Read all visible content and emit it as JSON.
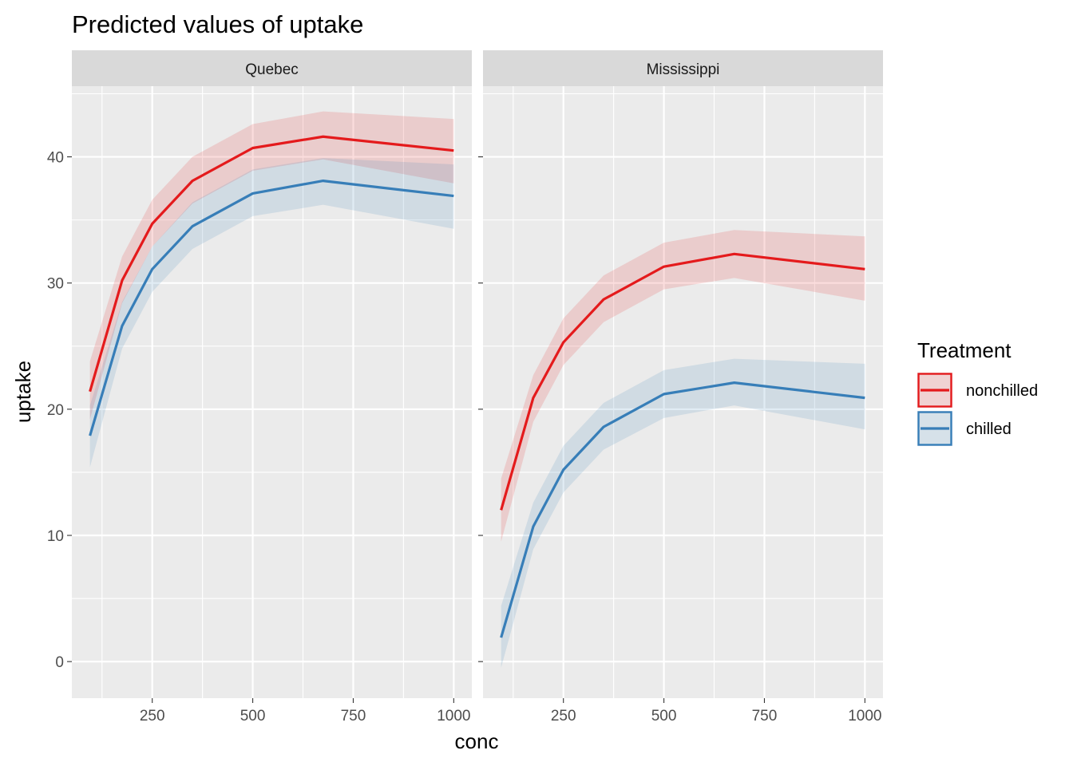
{
  "chart_data": {
    "type": "line",
    "title": "Predicted values of uptake",
    "xlabel": "conc",
    "ylabel": "uptake",
    "xlim": [
      50,
      1045
    ],
    "ylim": [
      -2.9,
      45.6
    ],
    "x_ticks": [
      250,
      500,
      750,
      1000
    ],
    "y_ticks": [
      0,
      10,
      20,
      30,
      40
    ],
    "grid": true,
    "bands": "confidence intervals",
    "legend": {
      "title": "Treatment",
      "position": "right",
      "entries": [
        "nonchilled",
        "chilled"
      ]
    },
    "colors": {
      "nonchilled": "#E41A1C",
      "chilled": "#377EB8"
    },
    "x": [
      95,
      175,
      250,
      350,
      500,
      675,
      1000
    ],
    "panels": [
      {
        "name": "Quebec",
        "series": [
          {
            "name": "nonchilled",
            "values": [
              21.4,
              30.2,
              34.7,
              38.1,
              40.7,
              41.6,
              40.5
            ],
            "lower": [
              19.2,
              28.4,
              32.9,
              36.3,
              38.9,
              39.8,
              37.9
            ],
            "upper": [
              23.8,
              32.1,
              36.6,
              40.0,
              42.6,
              43.6,
              43.0
            ]
          },
          {
            "name": "chilled",
            "values": [
              17.9,
              26.6,
              31.1,
              34.5,
              37.1,
              38.1,
              36.9
            ],
            "lower": [
              15.4,
              24.8,
              29.3,
              32.7,
              35.3,
              36.2,
              34.3
            ],
            "upper": [
              20.3,
              28.5,
              32.9,
              36.4,
              39.0,
              39.9,
              39.4
            ]
          }
        ]
      },
      {
        "name": "Mississippi",
        "series": [
          {
            "name": "nonchilled",
            "values": [
              12.0,
              20.9,
              25.3,
              28.7,
              31.3,
              32.3,
              31.1
            ],
            "lower": [
              9.5,
              19.0,
              23.5,
              26.9,
              29.5,
              30.4,
              28.6
            ],
            "upper": [
              14.5,
              22.7,
              27.2,
              30.6,
              33.2,
              34.2,
              33.7
            ]
          },
          {
            "name": "chilled",
            "values": [
              1.9,
              10.7,
              15.2,
              18.6,
              21.2,
              22.1,
              20.9
            ],
            "lower": [
              -0.5,
              8.9,
              13.4,
              16.8,
              19.3,
              20.3,
              18.4
            ],
            "upper": [
              4.4,
              12.6,
              17.1,
              20.5,
              23.1,
              24.0,
              23.6
            ]
          }
        ]
      }
    ]
  }
}
